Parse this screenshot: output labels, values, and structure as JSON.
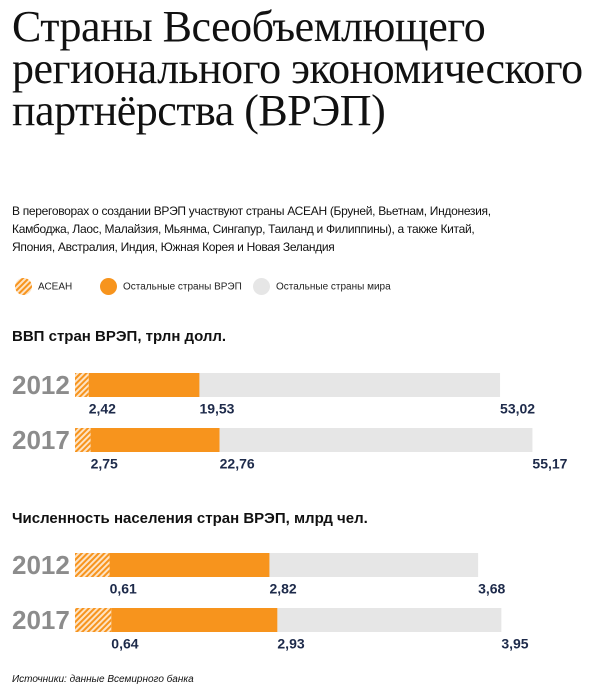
{
  "title": "Страны Всеобъемлющего регионального экономического партнёрства (ВРЭП)",
  "subtitle": "В переговорах о создании ВРЭП участвуют страны АСЕАН (Бруней, Вьетнам, Индонезия, Камбоджа, Лаос, Малайзия, Мьянма, Сингапур, Таиланд и Филиппины), а также Китай, Япония, Австралия, Индия, Южная Корея и Новая Зеландия",
  "source": "Источники: данные Всемирного банка",
  "chart_data": [
    {
      "type": "bar",
      "orientation": "horizontal",
      "stacked": true,
      "title": "ВВП стран ВРЭП, трлн долл.",
      "categories": [
        "2012",
        "2017"
      ],
      "series": [
        {
          "name": "АСЕАН",
          "color": "#f7941d",
          "fill": "hatch",
          "values": [
            2.42,
            2.75
          ],
          "value_labels": [
            "2,42",
            "2,75"
          ]
        },
        {
          "name": "Остальные страны ВРЭП",
          "color": "#f7941d",
          "values": [
            19.53,
            22.76
          ],
          "value_labels": [
            "19,53",
            "22,76"
          ]
        },
        {
          "name": "Остальные страны мира",
          "color": "#e6e6e6",
          "values": [
            53.02,
            55.17
          ],
          "value_labels": [
            "53,02",
            "55,17"
          ]
        }
      ],
      "xlim": [
        0,
        92.6
      ]
    },
    {
      "type": "bar",
      "orientation": "horizontal",
      "stacked": true,
      "title": "Численность населения стран ВРЭП, млрд чел.",
      "categories": [
        "2012",
        "2017"
      ],
      "series": [
        {
          "name": "АСЕАН",
          "color": "#f7941d",
          "fill": "hatch",
          "values": [
            0.61,
            0.64
          ],
          "value_labels": [
            "0,61",
            "0,64"
          ]
        },
        {
          "name": "Остальные страны ВРЭП",
          "color": "#f7941d",
          "values": [
            2.82,
            2.93
          ],
          "value_labels": [
            "2,82",
            "2,93"
          ]
        },
        {
          "name": "Остальные страны мира",
          "color": "#e6e6e6",
          "values": [
            3.68,
            3.95
          ],
          "value_labels": [
            "3,68",
            "3,95"
          ]
        }
      ],
      "xlim": [
        0,
        9.26
      ]
    }
  ]
}
